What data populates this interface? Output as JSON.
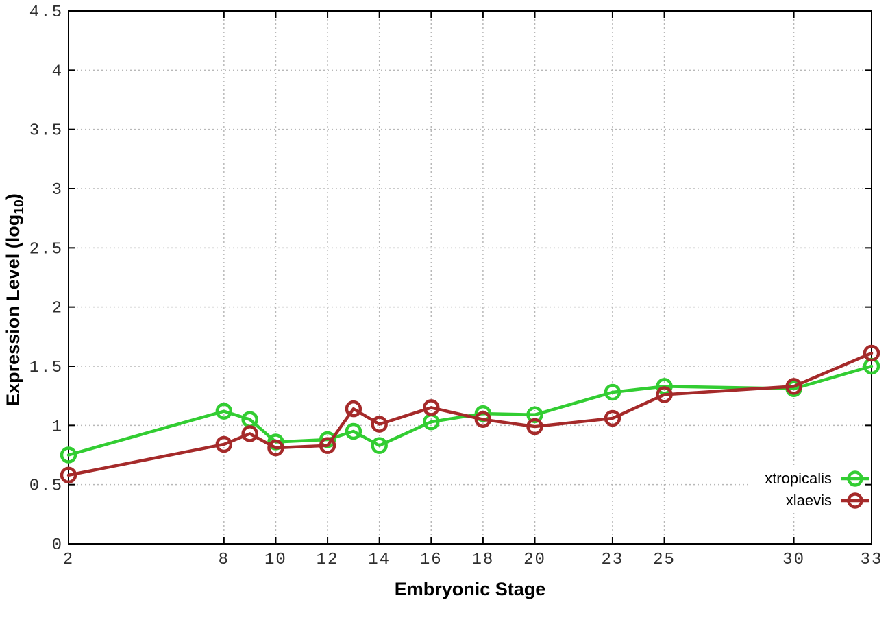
{
  "figure": {
    "background": "#ffffff",
    "xlabel": "Embryonic Stage",
    "ylabel_prefix": "Expression Level (log",
    "ylabel_sub": "10",
    "ylabel_suffix": ")"
  },
  "legend": {
    "items": [
      {
        "label": "xtropicalis",
        "color": "#32CD32"
      },
      {
        "label": "xlaevis",
        "color": "#A52A2A"
      }
    ]
  },
  "chart_data": {
    "type": "line",
    "title": "",
    "xlabel": "Embryonic Stage",
    "ylabel": "Expression Level (log10)",
    "x": [
      2,
      8,
      9,
      10,
      12,
      13,
      14,
      16,
      18,
      20,
      23,
      25,
      30,
      33
    ],
    "series": [
      {
        "name": "xtropicalis",
        "color": "#32CD32",
        "values": [
          0.75,
          1.12,
          1.05,
          0.86,
          0.88,
          0.95,
          0.83,
          1.03,
          1.1,
          1.09,
          1.28,
          1.33,
          1.31,
          1.5
        ]
      },
      {
        "name": "xlaevis",
        "color": "#A52A2A",
        "values": [
          0.58,
          0.84,
          0.93,
          0.81,
          0.83,
          1.14,
          1.01,
          1.15,
          1.05,
          0.99,
          1.06,
          1.26,
          1.33,
          1.61
        ]
      }
    ],
    "xlim": [
      2,
      33
    ],
    "ylim": [
      0,
      4.5
    ],
    "x_tick_labels": [
      "2",
      "8",
      "10",
      "12",
      "14",
      "16",
      "18",
      "20",
      "23",
      "25",
      "30",
      "33"
    ],
    "x_tick_values": [
      2,
      8,
      10,
      12,
      14,
      16,
      18,
      20,
      23,
      25,
      30,
      33
    ],
    "y_tick_labels": [
      "0",
      "0.5",
      "1",
      "1.5",
      "2",
      "2.5",
      "3",
      "3.5",
      "4",
      "4.5"
    ],
    "y_tick_values": [
      0,
      0.5,
      1,
      1.5,
      2,
      2.5,
      3,
      3.5,
      4,
      4.5
    ],
    "grid": true,
    "marker": "open-circle",
    "legend_position": "inside-bottom-right"
  },
  "style": {
    "grid_color": "#b8b8b8",
    "border_color": "#000000",
    "tick_label_color": "#2e2e2e"
  }
}
